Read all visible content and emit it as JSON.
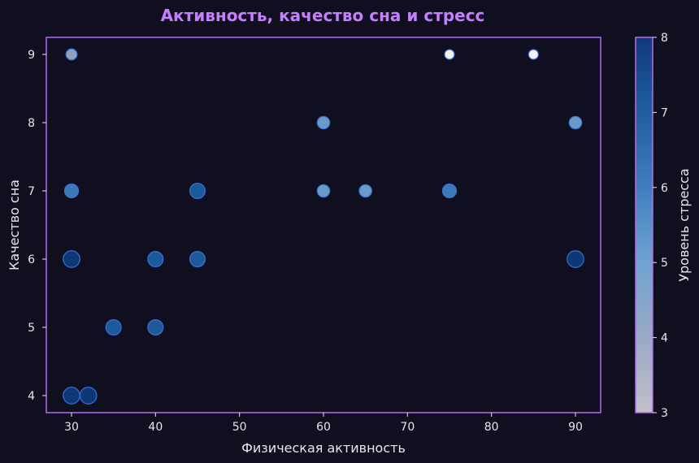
{
  "chart_data": {
    "type": "scatter",
    "title": "Активность, качество сна и стресс",
    "xlabel": "Физическая активность",
    "ylabel": "Качество сна",
    "colorbar_label": "Уровень стресса",
    "xlim": [
      27,
      93
    ],
    "ylim": [
      3.75,
      9.25
    ],
    "clim": [
      3,
      8
    ],
    "x_ticks": [
      30,
      40,
      50,
      60,
      70,
      80,
      90
    ],
    "y_ticks": [
      4,
      5,
      6,
      7,
      8,
      9
    ],
    "colorbar_ticks": [
      3,
      4,
      5,
      6,
      7,
      8
    ],
    "grid": false,
    "colors": {
      "background": "#0f0f1f",
      "frame": "#b36bf0",
      "title": "#c77dff",
      "text": "#e6e6f0",
      "colormap": [
        "#c0c0c8",
        "#9aaac4",
        "#6fa3d0",
        "#3f7fbf",
        "#1f5fa0",
        "#0f3a7a"
      ]
    },
    "points": [
      {
        "x": 30,
        "y": 9,
        "stress": 4
      },
      {
        "x": 75,
        "y": 9,
        "stress": 3
      },
      {
        "x": 85,
        "y": 9,
        "stress": 3
      },
      {
        "x": 60,
        "y": 8,
        "stress": 5
      },
      {
        "x": 90,
        "y": 8,
        "stress": 5
      },
      {
        "x": 30,
        "y": 7,
        "stress": 6
      },
      {
        "x": 45,
        "y": 7,
        "stress": 7
      },
      {
        "x": 60,
        "y": 7,
        "stress": 5
      },
      {
        "x": 65,
        "y": 7,
        "stress": 5
      },
      {
        "x": 75,
        "y": 7,
        "stress": 6
      },
      {
        "x": 30,
        "y": 6,
        "stress": 8
      },
      {
        "x": 40,
        "y": 6,
        "stress": 7
      },
      {
        "x": 45,
        "y": 6,
        "stress": 7
      },
      {
        "x": 90,
        "y": 6,
        "stress": 8
      },
      {
        "x": 35,
        "y": 5,
        "stress": 7
      },
      {
        "x": 40,
        "y": 5,
        "stress": 7
      },
      {
        "x": 30,
        "y": 4,
        "stress": 8
      },
      {
        "x": 32,
        "y": 4,
        "stress": 8
      }
    ]
  }
}
